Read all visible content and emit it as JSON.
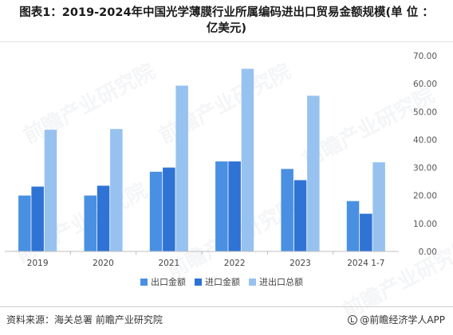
{
  "title": "图表1：2019-2024年中国光学薄膜行业所属编码进出口贸易金额规模(单 位 ：\n亿美元)",
  "source": "资料来源：海关总署 前瞻产业研究院",
  "brand": "@前瞻经济学人APP",
  "chart_data": {
    "type": "bar",
    "categories": [
      "2019",
      "2020",
      "2021",
      "2022",
      "2023",
      "2024 1-7"
    ],
    "series": [
      {
        "name": "出口金额",
        "values": [
          20.0,
          20.0,
          28.5,
          32.2,
          29.5,
          18.0
        ],
        "color": "#4a90e2"
      },
      {
        "name": "进口金额",
        "values": [
          23.2,
          23.5,
          30.0,
          32.2,
          25.5,
          13.5
        ],
        "color": "#2f73d4"
      },
      {
        "name": "进出口总额",
        "values": [
          43.5,
          43.8,
          59.3,
          65.3,
          55.7,
          31.9
        ],
        "color": "#97c2ef"
      }
    ],
    "ylim": [
      0,
      70
    ],
    "yticks": [
      "0.00",
      "10.00",
      "20.00",
      "30.00",
      "40.00",
      "50.00",
      "60.00",
      "70.00"
    ],
    "y_axis_side": "right",
    "grid": false,
    "legend": "bottom-center"
  }
}
